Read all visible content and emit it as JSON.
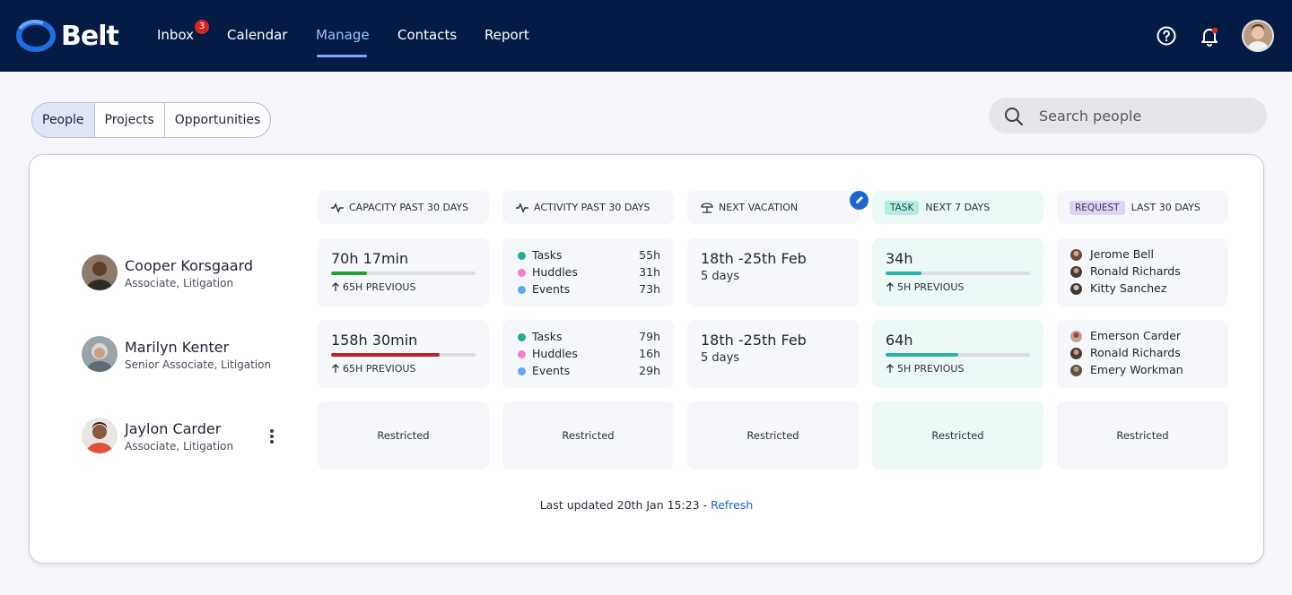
{
  "app": {
    "name": "Belt"
  },
  "nav": {
    "items": [
      {
        "label": "Inbox",
        "badge": "3"
      },
      {
        "label": "Calendar"
      },
      {
        "label": "Manage",
        "active": true
      },
      {
        "label": "Contacts"
      },
      {
        "label": "Report"
      }
    ]
  },
  "tabs": [
    "People",
    "Projects",
    "Opportunities"
  ],
  "active_tab": "People",
  "search": {
    "placeholder": "Search people",
    "value": ""
  },
  "columns": {
    "capacity": "CAPACITY PAST 30 DAYS",
    "activity": "ACTIVITY PAST 30 DAYS",
    "vacation": "NEXT VACATION",
    "task_chip": "TASK",
    "task": "NEXT 7 DAYS",
    "request_chip": "REQUEST",
    "request": "LAST 30 DAYS"
  },
  "people": [
    {
      "name": "Cooper Korsgaard",
      "role": "Associate, Litigation",
      "capacity": {
        "value": "70h 17min",
        "fill_fraction": 0.25,
        "color": "#23a02f",
        "previous": "65H PREVIOUS"
      },
      "activity": [
        {
          "label": "Tasks",
          "value": "55h"
        },
        {
          "label": "Huddles",
          "value": "31h"
        },
        {
          "label": "Events",
          "value": "73h"
        }
      ],
      "vacation": {
        "dates": "18th -25th Feb",
        "days": "5 days"
      },
      "task": {
        "value": "34h",
        "fill_fraction": 0.25,
        "color": "#2bb3a3",
        "previous": "5H PREVIOUS"
      },
      "requests": [
        "Jerome Bell",
        "Ronald Richards",
        "Kitty Sanchez"
      ]
    },
    {
      "name": "Marilyn Kenter",
      "role": "Senior Associate, Litigation",
      "capacity": {
        "value": "158h 30min",
        "fill_fraction": 0.75,
        "color": "#b82525",
        "previous": "65H PREVIOUS"
      },
      "activity": [
        {
          "label": "Tasks",
          "value": "79h"
        },
        {
          "label": "Huddles",
          "value": "16h"
        },
        {
          "label": "Events",
          "value": "29h"
        }
      ],
      "vacation": {
        "dates": "18th -25th Feb",
        "days": "5 days"
      },
      "task": {
        "value": "64h",
        "fill_fraction": 0.5,
        "color": "#2bb3a3",
        "previous": "5H PREVIOUS"
      },
      "requests": [
        "Emerson Carder",
        "Ronald Richards",
        "Emery Workman"
      ]
    },
    {
      "name": "Jaylon Carder",
      "role": "Associate, Litigation",
      "restricted": "Restricted"
    }
  ],
  "activity_colors": {
    "Tasks": "#26ad95",
    "Huddles": "#f07ecb",
    "Events": "#5ea7ee"
  },
  "footer": {
    "text": "Last updated 20th Jan 15:23 - ",
    "link": "Refresh"
  }
}
